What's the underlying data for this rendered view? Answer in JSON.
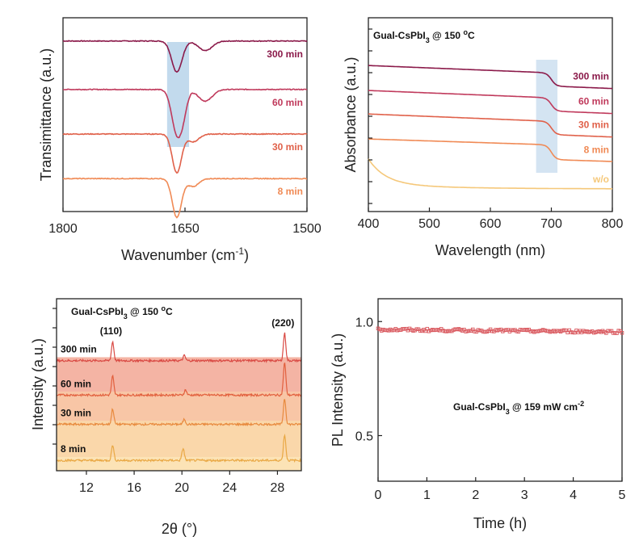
{
  "chart_data": [
    {
      "id": "ftir",
      "type": "line",
      "xlabel": "Wavenumber (cm",
      "xlabel_sup": "-1",
      "xlabel_end": ")",
      "ylabel": "Transimittance (a.u.)",
      "xlim": [
        1800,
        1500
      ],
      "ylim": [
        0,
        1
      ],
      "xticks": [
        1800,
        1650,
        1500
      ],
      "highlight_x": [
        1672,
        1645
      ],
      "series": [
        {
          "name": "300 min",
          "color": "#8b1a4a",
          "offset": 0.88,
          "dips": [
            [
              1660,
              0.16,
              9
            ],
            [
              1625,
              0.05,
              12
            ]
          ]
        },
        {
          "name": "60 min",
          "color": "#c03a5c",
          "offset": 0.63,
          "dips": [
            [
              1660,
              0.22,
              9
            ],
            [
              1652,
              0.08,
              7
            ],
            [
              1625,
              0.06,
              12
            ]
          ]
        },
        {
          "name": "30 min",
          "color": "#e0614a",
          "offset": 0.4,
          "dips": [
            [
              1660,
              0.2,
              8
            ],
            [
              1640,
              0.04,
              10
            ]
          ]
        },
        {
          "name": "8 min",
          "color": "#f08a55",
          "offset": 0.17,
          "dips": [
            [
              1660,
              0.2,
              8
            ],
            [
              1640,
              0.04,
              10
            ]
          ]
        }
      ]
    },
    {
      "id": "absorbance",
      "type": "line",
      "title": "Gual-CsPbI",
      "title_sub": "3",
      "title_rest": " @ 150 ",
      "title_sup": "o",
      "title_end": "C",
      "xlabel": "Wavelength (nm)",
      "ylabel": "Absorbance (a.u.)",
      "xlim": [
        400,
        800
      ],
      "ylim": [
        0,
        1
      ],
      "xticks": [
        400,
        500,
        600,
        700,
        800
      ],
      "highlight_x": [
        675,
        710
      ],
      "series": [
        {
          "name": "300 min",
          "color": "#8b1a4a",
          "start": 0.84,
          "mid": 0.79,
          "end": 0.7,
          "edge": 700
        },
        {
          "name": "60 min",
          "color": "#c03a5c",
          "start": 0.67,
          "mid": 0.62,
          "end": 0.53,
          "edge": 700
        },
        {
          "name": "30 min",
          "color": "#e0614a",
          "start": 0.51,
          "mid": 0.46,
          "end": 0.37,
          "edge": 700
        },
        {
          "name": "8 min",
          "color": "#f08a55",
          "start": 0.34,
          "mid": 0.3,
          "end": 0.2,
          "edge": 700
        },
        {
          "name": "w/o",
          "color": "#f5c87a",
          "start": 0.17,
          "mid": 0.03,
          "end": 0.0,
          "edge": 0
        }
      ]
    },
    {
      "id": "xrd",
      "type": "line",
      "title": "Gual-CsPbI",
      "title_sub": "3",
      "title_rest": " @ 150 ",
      "title_sup": "o",
      "title_end": "C",
      "xlabel": "2θ (°)",
      "ylabel": "Intensity (a.u.)",
      "xlim": [
        9.5,
        30
      ],
      "ylim": [
        0,
        1
      ],
      "xticks": [
        12,
        16,
        20,
        24,
        28
      ],
      "peak_labels": [
        {
          "text": "(110)",
          "x": 14.2
        },
        {
          "text": "(220)",
          "x": 28.6
        }
      ],
      "series": [
        {
          "name": "300 min",
          "color": "#d94a44",
          "fill": "#f4b4a4",
          "offset": 0.64,
          "peaks": [
            [
              14.2,
              0.11
            ],
            [
              20.2,
              0.03
            ],
            [
              28.6,
              0.16
            ]
          ]
        },
        {
          "name": "60 min",
          "color": "#e2603e",
          "fill": "#f8c6a6",
          "offset": 0.44,
          "peaks": [
            [
              14.2,
              0.11
            ],
            [
              20.3,
              0.03
            ],
            [
              28.6,
              0.19
            ]
          ]
        },
        {
          "name": "30 min",
          "color": "#e88a3e",
          "fill": "#fad7aa",
          "offset": 0.27,
          "peaks": [
            [
              14.2,
              0.09
            ],
            [
              20.2,
              0.03
            ],
            [
              28.6,
              0.15
            ]
          ]
        },
        {
          "name": "8 min",
          "color": "#e9a844",
          "fill": "#fce3b6",
          "offset": 0.06,
          "peaks": [
            [
              14.2,
              0.09
            ],
            [
              20.1,
              0.07
            ],
            [
              28.6,
              0.15
            ]
          ]
        }
      ]
    },
    {
      "id": "pl",
      "type": "scatter",
      "xlabel": "Time (h)",
      "ylabel": "PL Intensity (a.u.)",
      "xlim": [
        0,
        5
      ],
      "ylim": [
        0.3,
        1.1
      ],
      "xticks": [
        0,
        1,
        2,
        3,
        4,
        5
      ],
      "yticks": [
        0.5,
        1.0
      ],
      "ytick_labels": [
        "0.5",
        "1.0"
      ],
      "annotation": "Gual-CsPbI",
      "annotation_sub": "3",
      "annotation_rest": " @ 159 mW cm",
      "annotation_sup": "-2",
      "marker_color": "#d9585e",
      "series": [
        {
          "name": "PL",
          "x_start": 0,
          "x_end": 5,
          "n": 140,
          "y_start": 0.965,
          "y_end": 0.955,
          "noise": 0.012
        }
      ]
    }
  ]
}
